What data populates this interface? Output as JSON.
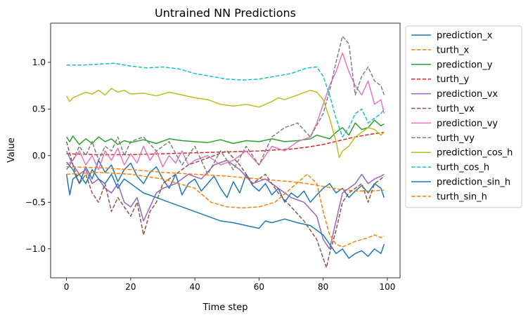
{
  "chart_data": {
    "type": "line",
    "title": "Untrained NN Predictions",
    "xlabel": "Time step",
    "ylabel": "Value",
    "xlim": [
      -4.95,
      103.95
    ],
    "ylim": [
      -1.31,
      1.42
    ],
    "xticks": [
      0,
      20,
      40,
      60,
      80,
      100
    ],
    "yticks": [
      -1.0,
      -0.5,
      0.0,
      0.5,
      1.0
    ],
    "ytick_labels": [
      "−1.0",
      "−0.5",
      "0.0",
      "0.5",
      "1.0"
    ],
    "grid": false,
    "legend_position": "outside-right",
    "series": [
      {
        "name": "prediction_x",
        "color": "#1f77b4",
        "dash": "solid",
        "x": [
          0,
          2,
          4,
          6,
          8,
          10,
          12,
          14,
          16,
          18,
          20,
          22,
          24,
          26,
          28,
          30,
          32,
          34,
          36,
          38,
          40,
          42,
          44,
          46,
          48,
          50,
          52,
          54,
          56,
          58,
          60,
          62,
          64,
          66,
          68,
          70,
          72,
          74,
          76,
          78,
          80,
          82,
          84,
          86,
          88,
          90,
          92,
          94,
          96,
          98,
          99
        ],
        "y": [
          -0.07,
          -0.15,
          -0.3,
          -0.12,
          -0.25,
          -0.05,
          -0.18,
          -0.1,
          -0.28,
          -0.15,
          -0.08,
          -0.22,
          -0.3,
          -0.18,
          -0.12,
          -0.25,
          -0.35,
          -0.2,
          -0.42,
          -0.3,
          -0.25,
          -0.38,
          -0.3,
          -0.22,
          -0.35,
          -0.45,
          -0.28,
          -0.4,
          -0.2,
          -0.32,
          -0.38,
          -0.3,
          -0.42,
          -0.35,
          -0.5,
          -0.4,
          -0.45,
          -0.38,
          -0.5,
          -0.42,
          -0.35,
          -0.3,
          -0.4,
          -0.35,
          -0.45,
          -0.38,
          -0.32,
          -0.4,
          -0.3,
          -0.35,
          -0.45
        ]
      },
      {
        "name": "turth_x",
        "color": "#ff7f0e",
        "dash": "dashed",
        "x": [
          0,
          10,
          20,
          30,
          40,
          50,
          60,
          70,
          75,
          80,
          85,
          90,
          95,
          99
        ],
        "y": [
          -0.12,
          -0.13,
          -0.15,
          -0.18,
          -0.2,
          -0.22,
          -0.25,
          -0.28,
          -0.3,
          -0.33,
          -0.36,
          -0.38,
          -0.38,
          -0.37
        ]
      },
      {
        "name": "prediction_y",
        "color": "#2ca02c",
        "dash": "solid",
        "x": [
          0,
          1,
          2,
          4,
          6,
          8,
          10,
          12,
          14,
          16,
          18,
          20,
          24,
          28,
          32,
          36,
          40,
          44,
          48,
          52,
          56,
          60,
          64,
          68,
          72,
          76,
          78,
          80,
          82,
          84,
          86,
          88,
          90,
          92,
          94,
          96,
          98,
          99
        ],
        "y": [
          0.2,
          0.15,
          0.21,
          0.12,
          0.18,
          0.13,
          0.2,
          0.15,
          0.18,
          0.12,
          0.16,
          0.14,
          0.17,
          0.13,
          0.18,
          0.16,
          0.15,
          0.14,
          0.17,
          0.13,
          0.16,
          0.15,
          0.18,
          0.15,
          0.16,
          0.18,
          0.22,
          0.2,
          0.18,
          0.25,
          0.3,
          0.22,
          0.35,
          0.28,
          0.3,
          0.38,
          0.32,
          0.34
        ]
      },
      {
        "name": "turth_y",
        "color": "#d62728",
        "dash": "dashed",
        "x": [
          0,
          10,
          20,
          30,
          40,
          50,
          60,
          65,
          70,
          75,
          80,
          85,
          90,
          95,
          99
        ],
        "y": [
          0.02,
          0.01,
          0.01,
          0.02,
          0.03,
          0.04,
          0.05,
          0.06,
          0.07,
          0.09,
          0.12,
          0.16,
          0.2,
          0.23,
          0.25
        ]
      },
      {
        "name": "prediction_vx",
        "color": "#9467bd",
        "dash": "solid",
        "x": [
          0,
          2,
          4,
          6,
          8,
          10,
          12,
          14,
          16,
          18,
          20,
          22,
          24,
          26,
          28,
          30,
          34,
          38,
          42,
          46,
          50,
          54,
          58,
          62,
          66,
          70,
          74,
          78,
          80,
          82,
          84,
          86,
          88,
          90,
          92,
          94,
          96,
          98,
          99
        ],
        "y": [
          0.05,
          -0.1,
          -0.2,
          -0.15,
          -0.3,
          -0.25,
          -0.35,
          -0.4,
          -0.3,
          -0.5,
          -0.55,
          -0.45,
          -0.7,
          -0.55,
          -0.4,
          -0.35,
          -0.3,
          -0.2,
          -0.25,
          -0.1,
          -0.05,
          -0.15,
          -0.3,
          -0.25,
          -0.35,
          -0.45,
          -0.5,
          -0.65,
          -0.9,
          -1.0,
          -0.7,
          -0.4,
          -0.35,
          -0.3,
          -0.2,
          -0.3,
          -0.25,
          -0.22,
          -0.2
        ]
      },
      {
        "name": "turth_vx",
        "color": "#8c564b",
        "dash": "dashed",
        "x": [
          0,
          2,
          4,
          6,
          8,
          10,
          12,
          14,
          16,
          18,
          20,
          22,
          24,
          26,
          28,
          30,
          34,
          38,
          42,
          46,
          50,
          54,
          58,
          62,
          66,
          70,
          74,
          78,
          80,
          81,
          82,
          84,
          86,
          88,
          90,
          92,
          94,
          96,
          98,
          99
        ],
        "y": [
          0.15,
          -0.1,
          -0.3,
          -0.2,
          -0.4,
          -0.5,
          -0.3,
          -0.6,
          -0.45,
          -0.55,
          -0.65,
          -0.5,
          -0.85,
          -0.6,
          -0.5,
          -0.3,
          -0.2,
          -0.1,
          -0.05,
          0.0,
          0.05,
          -0.1,
          -0.3,
          -0.2,
          -0.4,
          -0.55,
          -0.7,
          -0.9,
          -1.1,
          -1.2,
          -1.05,
          -0.8,
          -0.5,
          -0.4,
          -0.35,
          -0.3,
          -0.5,
          -0.3,
          -0.25,
          -0.22
        ]
      },
      {
        "name": "prediction_vy",
        "color": "#e377c2",
        "dash": "solid",
        "x": [
          0,
          2,
          4,
          6,
          8,
          10,
          12,
          14,
          16,
          18,
          20,
          22,
          24,
          26,
          28,
          30,
          32,
          34,
          36,
          38,
          40,
          44,
          48,
          52,
          56,
          60,
          64,
          68,
          72,
          76,
          78,
          80,
          82,
          84,
          86,
          88,
          90,
          92,
          94,
          96,
          98,
          99
        ],
        "y": [
          -0.1,
          -0.05,
          0.05,
          -0.1,
          0.0,
          -0.15,
          0.05,
          -0.05,
          0.08,
          -0.1,
          0.02,
          -0.08,
          0.1,
          -0.05,
          0.05,
          -0.12,
          0.0,
          -0.08,
          0.05,
          -0.1,
          -0.05,
          0.0,
          -0.1,
          -0.05,
          0.05,
          -0.1,
          0.1,
          0.05,
          0.15,
          0.2,
          0.35,
          0.55,
          0.75,
          0.9,
          1.1,
          0.9,
          0.75,
          0.65,
          0.8,
          0.55,
          0.6,
          0.45
        ]
      },
      {
        "name": "turth_vy",
        "color": "#7f7f7f",
        "dash": "dashed",
        "x": [
          0,
          2,
          4,
          6,
          8,
          10,
          12,
          14,
          16,
          18,
          20,
          24,
          28,
          32,
          36,
          40,
          44,
          48,
          52,
          56,
          60,
          64,
          68,
          72,
          76,
          80,
          82,
          84,
          86,
          88,
          90,
          92,
          94,
          96,
          98,
          99
        ],
        "y": [
          -0.15,
          -0.05,
          0.1,
          0.0,
          0.15,
          -0.05,
          0.1,
          0.05,
          0.2,
          0.0,
          0.15,
          0.2,
          0.05,
          0.15,
          -0.1,
          0.1,
          -0.2,
          0.05,
          -0.15,
          0.1,
          -0.1,
          0.2,
          0.3,
          0.35,
          0.2,
          0.45,
          0.7,
          1.0,
          1.28,
          1.2,
          0.65,
          0.85,
          0.95,
          0.8,
          0.75,
          0.65
        ]
      },
      {
        "name": "prediction_cos_h",
        "color": "#bcbd22",
        "dash": "solid",
        "x": [
          0,
          1,
          2,
          4,
          6,
          8,
          10,
          12,
          14,
          16,
          18,
          20,
          24,
          28,
          32,
          36,
          40,
          44,
          48,
          52,
          56,
          60,
          64,
          66,
          68,
          72,
          76,
          78,
          80,
          82,
          84,
          85,
          86,
          88,
          90,
          92,
          94,
          96,
          98,
          99
        ],
        "y": [
          0.64,
          0.58,
          0.62,
          0.65,
          0.68,
          0.66,
          0.7,
          0.65,
          0.72,
          0.68,
          0.7,
          0.66,
          0.67,
          0.64,
          0.68,
          0.65,
          0.62,
          0.6,
          0.55,
          0.53,
          0.55,
          0.52,
          0.58,
          0.62,
          0.6,
          0.65,
          0.7,
          0.68,
          0.6,
          0.4,
          0.15,
          -0.02,
          0.05,
          0.1,
          0.2,
          0.25,
          0.3,
          0.28,
          0.22,
          0.25
        ]
      },
      {
        "name": "turth_cos_h",
        "color": "#17becf",
        "dash": "dashed",
        "x": [
          0,
          5,
          10,
          15,
          20,
          25,
          30,
          35,
          40,
          45,
          50,
          55,
          60,
          65,
          70,
          75,
          78,
          80,
          82,
          84,
          86,
          88,
          90,
          92,
          94,
          96,
          98,
          99
        ],
        "y": [
          0.97,
          0.97,
          0.98,
          0.99,
          0.96,
          0.94,
          0.95,
          0.93,
          0.88,
          0.85,
          0.82,
          0.81,
          0.82,
          0.85,
          0.88,
          0.94,
          0.95,
          0.85,
          0.65,
          0.4,
          0.2,
          0.3,
          0.45,
          0.5,
          0.35,
          0.4,
          0.45,
          0.5
        ]
      },
      {
        "name": "prediction_sin_h",
        "color": "#1f77b4",
        "dash": "solid",
        "x": [
          0,
          1,
          2,
          4,
          6,
          8,
          10,
          12,
          14,
          16,
          18,
          20,
          24,
          28,
          32,
          36,
          40,
          44,
          48,
          52,
          56,
          60,
          62,
          64,
          68,
          72,
          76,
          78,
          80,
          82,
          84,
          86,
          88,
          90,
          92,
          94,
          96,
          98,
          99
        ],
        "y": [
          -0.2,
          -0.42,
          -0.25,
          -0.2,
          -0.3,
          -0.15,
          -0.25,
          -0.3,
          -0.2,
          -0.35,
          -0.25,
          -0.3,
          -0.4,
          -0.45,
          -0.5,
          -0.55,
          -0.6,
          -0.65,
          -0.7,
          -0.72,
          -0.75,
          -0.78,
          -0.7,
          -0.72,
          -0.68,
          -0.72,
          -0.75,
          -0.8,
          -0.85,
          -0.95,
          -1.05,
          -1.0,
          -1.1,
          -1.05,
          -1.02,
          -1.08,
          -1.0,
          -1.05,
          -0.95
        ]
      },
      {
        "name": "turth_sin_h",
        "color": "#ff7f0e",
        "dash": "dashed",
        "x": [
          0,
          10,
          20,
          30,
          40,
          45,
          50,
          55,
          60,
          65,
          70,
          75,
          78,
          80,
          82,
          84,
          86,
          88,
          90,
          92,
          94,
          96,
          98,
          99
        ],
        "y": [
          -0.2,
          -0.18,
          -0.2,
          -0.25,
          -0.35,
          -0.5,
          -0.55,
          -0.56,
          -0.55,
          -0.5,
          -0.35,
          -0.2,
          -0.3,
          -0.6,
          -0.85,
          -0.95,
          -0.98,
          -0.95,
          -0.92,
          -0.9,
          -0.88,
          -0.85,
          -0.88,
          -0.86
        ]
      }
    ]
  }
}
